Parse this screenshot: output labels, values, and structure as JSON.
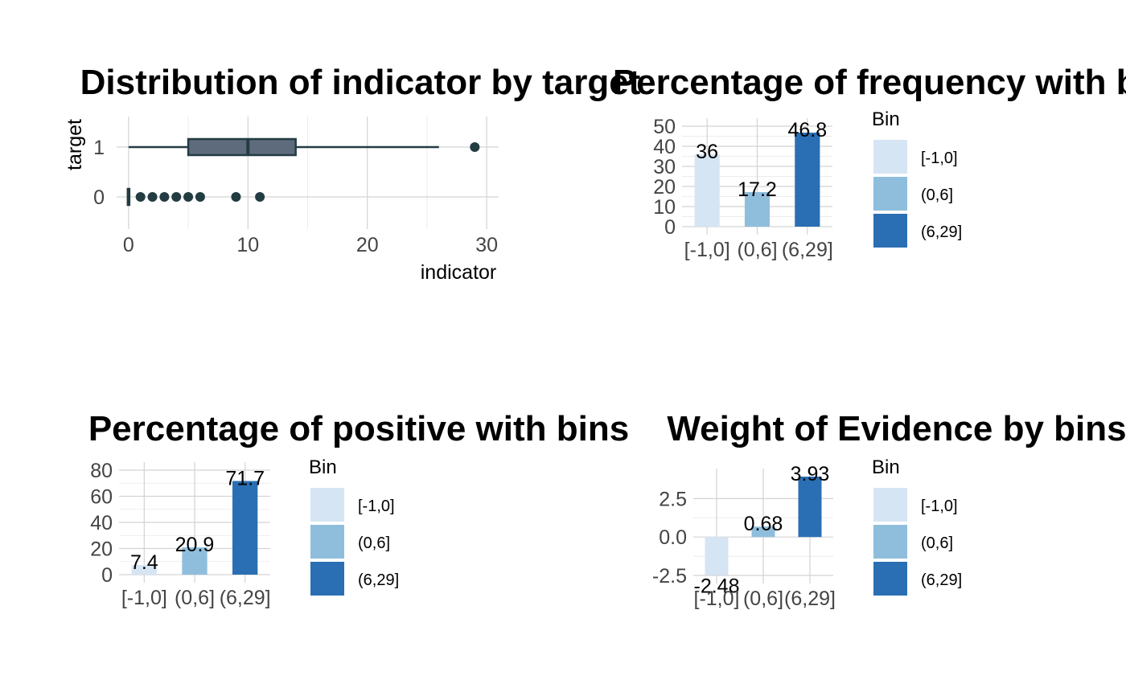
{
  "chart_data": [
    {
      "id": "dist",
      "type": "boxplot",
      "title": "Distribution of indicator by target",
      "xlabel": "indicator",
      "ylabel": "target",
      "xlim": [
        -1,
        31
      ],
      "xticks": [
        0,
        10,
        20,
        30
      ],
      "xtick_labels": [
        "0",
        "10",
        "20",
        "30"
      ],
      "categories": [
        "0",
        "1"
      ],
      "box_color": "#5E6B7C",
      "line_color": "#233C42",
      "boxes": [
        {
          "category": "1",
          "whisker_low": 0,
          "q1": 5,
          "median": 10,
          "q3": 14,
          "whisker_high": 26,
          "outliers": [
            29
          ]
        },
        {
          "category": "0",
          "whisker_low": 0,
          "q1": 0,
          "median": 0,
          "q3": 0,
          "whisker_high": 0,
          "outliers": [
            1,
            2,
            3,
            4,
            5,
            6,
            9,
            11
          ]
        }
      ]
    },
    {
      "id": "freq",
      "type": "bar",
      "title": "Percentage of frequency with bins",
      "categories": [
        "[-1,0]",
        "(0,6]",
        "(6,29]"
      ],
      "values": [
        36,
        17.2,
        46.8
      ],
      "value_labels": [
        "36",
        "17.2",
        "46.8"
      ],
      "ylim": [
        0,
        50
      ],
      "yticks": [
        0,
        10,
        20,
        30,
        40,
        50
      ],
      "ytick_labels": [
        "0",
        "10",
        "20",
        "30",
        "40",
        "50"
      ],
      "legend_title": "Bin"
    },
    {
      "id": "pos",
      "type": "bar",
      "title": "Percentage of positive with bins",
      "categories": [
        "[-1,0]",
        "(0,6]",
        "(6,29]"
      ],
      "values": [
        7.4,
        20.9,
        71.7
      ],
      "value_labels": [
        "7.4",
        "20.9",
        "71.7"
      ],
      "ylim": [
        0,
        80
      ],
      "yticks": [
        0,
        20,
        40,
        60,
        80
      ],
      "ytick_labels": [
        "0",
        "20",
        "40",
        "60",
        "80"
      ],
      "legend_title": "Bin"
    },
    {
      "id": "woe",
      "type": "bar",
      "title": "Weight of Evidence by bins",
      "categories": [
        "[-1,0]",
        "(0,6]",
        "(6,29]"
      ],
      "values": [
        -2.48,
        0.68,
        3.93
      ],
      "value_labels": [
        "-2.48",
        "0.68",
        "3.93"
      ],
      "ylim": [
        -2.5,
        3.93
      ],
      "yticks": [
        -2.5,
        0,
        2.5
      ],
      "ytick_labels": [
        "-2.5",
        "0.0",
        "2.5"
      ],
      "legend_title": "Bin"
    }
  ],
  "bin_colors": [
    "#D6E5F4",
    "#8FBEDD",
    "#2A6FB3"
  ],
  "legend_items": [
    "[-1,0]",
    "(0,6]",
    "(6,29]"
  ]
}
